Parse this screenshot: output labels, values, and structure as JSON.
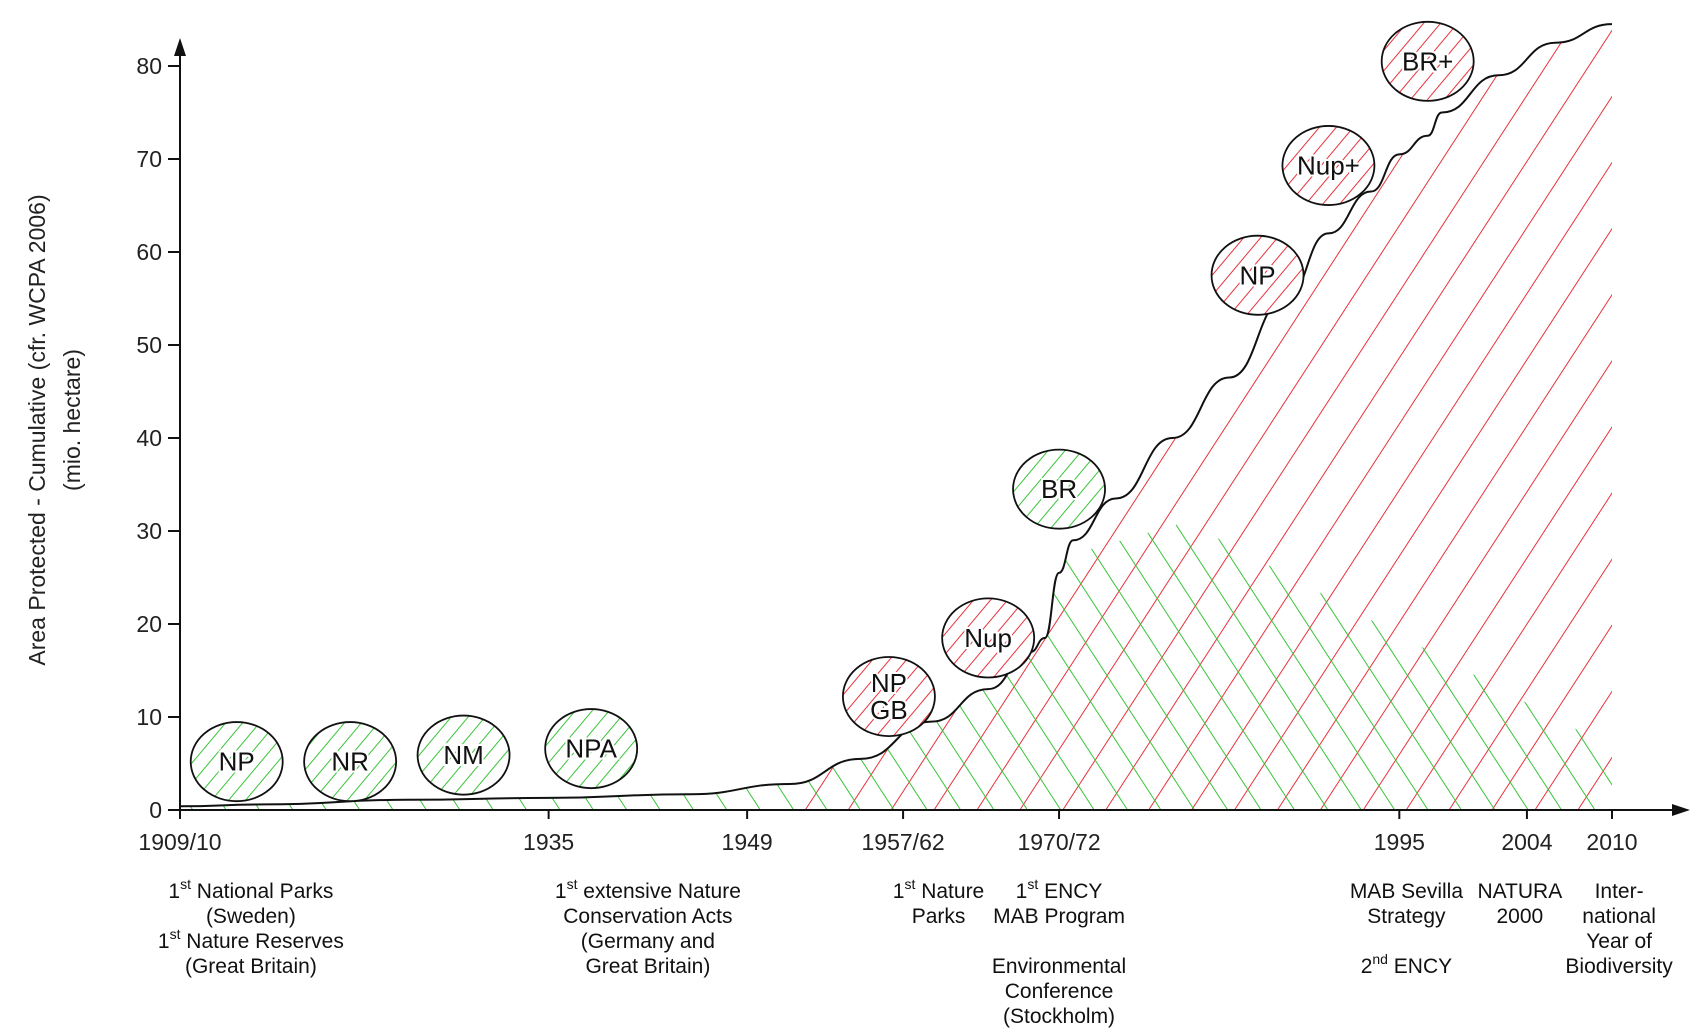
{
  "chart_data": {
    "type": "area",
    "ylabel": "Area Protected - Cumulative (cfr. WCPA 2006)",
    "ylabel_sub": "(mio. hectare)",
    "ylim": [
      0,
      85
    ],
    "y_ticks": [
      0,
      10,
      20,
      30,
      40,
      50,
      60,
      70,
      80
    ],
    "x_tick_labels": [
      {
        "label": "1909/10",
        "year": 1909
      },
      {
        "label": "1935",
        "year": 1935
      },
      {
        "label": "1949",
        "year": 1949
      },
      {
        "label": "1957/62",
        "year": 1960
      },
      {
        "label": "1970/72",
        "year": 1971
      },
      {
        "label": "1995",
        "year": 1995
      },
      {
        "label": "2004",
        "year": 2004
      },
      {
        "label": "2010",
        "year": 2010
      }
    ],
    "curve": {
      "x": [
        1909,
        1915,
        1925,
        1935,
        1945,
        1952,
        1957,
        1962,
        1966,
        1969,
        1970,
        1971,
        1972,
        1975,
        1979,
        1983,
        1987,
        1990,
        1993,
        1995,
        1997,
        1998,
        2002,
        2006,
        2010
      ],
      "y": [
        0.4,
        0.6,
        1.1,
        1.3,
        1.7,
        2.8,
        5.5,
        9.5,
        13,
        17,
        18.5,
        25.5,
        29,
        33.5,
        40,
        46.5,
        55,
        62,
        66.5,
        70.5,
        72.5,
        75,
        79,
        82.5,
        84.5
      ]
    },
    "regions": [
      {
        "name": "green hatch",
        "color": "#39c439"
      },
      {
        "name": "red hatch",
        "color": "#e8323c"
      }
    ],
    "bubbles": [
      {
        "label": "NP",
        "year": 1913,
        "value": 5.2,
        "color": "#39c439"
      },
      {
        "label": "NR",
        "year": 1921,
        "value": 5.2,
        "color": "#39c439"
      },
      {
        "label": "NM",
        "year": 1929,
        "value": 5.9,
        "color": "#39c439"
      },
      {
        "label": "NPA",
        "year": 1938,
        "value": 6.6,
        "color": "#39c439"
      },
      {
        "label": "NP\nGB",
        "year": 1959,
        "value": 12.2,
        "color": "#e8323c"
      },
      {
        "label": "Nup",
        "year": 1966,
        "value": 18.5,
        "color": "#e8323c"
      },
      {
        "label": "BR",
        "year": 1971,
        "value": 34.5,
        "color": "#39c439"
      },
      {
        "label": "NP",
        "year": 1985,
        "value": 57.5,
        "color": "#e8323c"
      },
      {
        "label": "Nup+",
        "year": 1990,
        "value": 69.3,
        "color": "#e8323c"
      },
      {
        "label": "BR+",
        "year": 1997,
        "value": 80.5,
        "color": "#e8323c"
      }
    ],
    "annotations": [
      {
        "anchor_year": 1914,
        "lines": [
          [
            "1",
            "st",
            " National Parks"
          ],
          [
            "(Sweden)"
          ],
          [
            "1",
            "st",
            " Nature Reserves"
          ],
          [
            "(Great Britain)"
          ]
        ]
      },
      {
        "anchor_year": 1942,
        "lines": [
          [
            "1",
            "st",
            " extensive Nature"
          ],
          [
            "Conservation Acts"
          ],
          [
            "(Germany and"
          ],
          [
            "Great Britain)"
          ]
        ]
      },
      {
        "anchor_year": 1962.5,
        "lines": [
          [
            "1",
            "st",
            " Nature"
          ],
          [
            "Parks"
          ]
        ]
      },
      {
        "anchor_year": 1971,
        "lines": [
          [
            "1",
            "st",
            " ENCY"
          ],
          [
            "MAB Program"
          ],
          [
            ""
          ],
          [
            "Environmental"
          ],
          [
            "Conference"
          ],
          [
            "(Stockholm)"
          ]
        ]
      },
      {
        "anchor_year": 1995.5,
        "lines": [
          [
            "MAB Sevilla"
          ],
          [
            "Strategy"
          ],
          [
            ""
          ],
          [
            "2",
            "nd",
            " ENCY"
          ]
        ]
      },
      {
        "anchor_year": 2003.5,
        "lines": [
          [
            "NATURA"
          ],
          [
            "2000"
          ]
        ]
      },
      {
        "anchor_year": 2010.5,
        "lines": [
          [
            "Inter-"
          ],
          [
            "national"
          ],
          [
            "Year of"
          ],
          [
            "Biodiversity"
          ]
        ]
      }
    ]
  }
}
